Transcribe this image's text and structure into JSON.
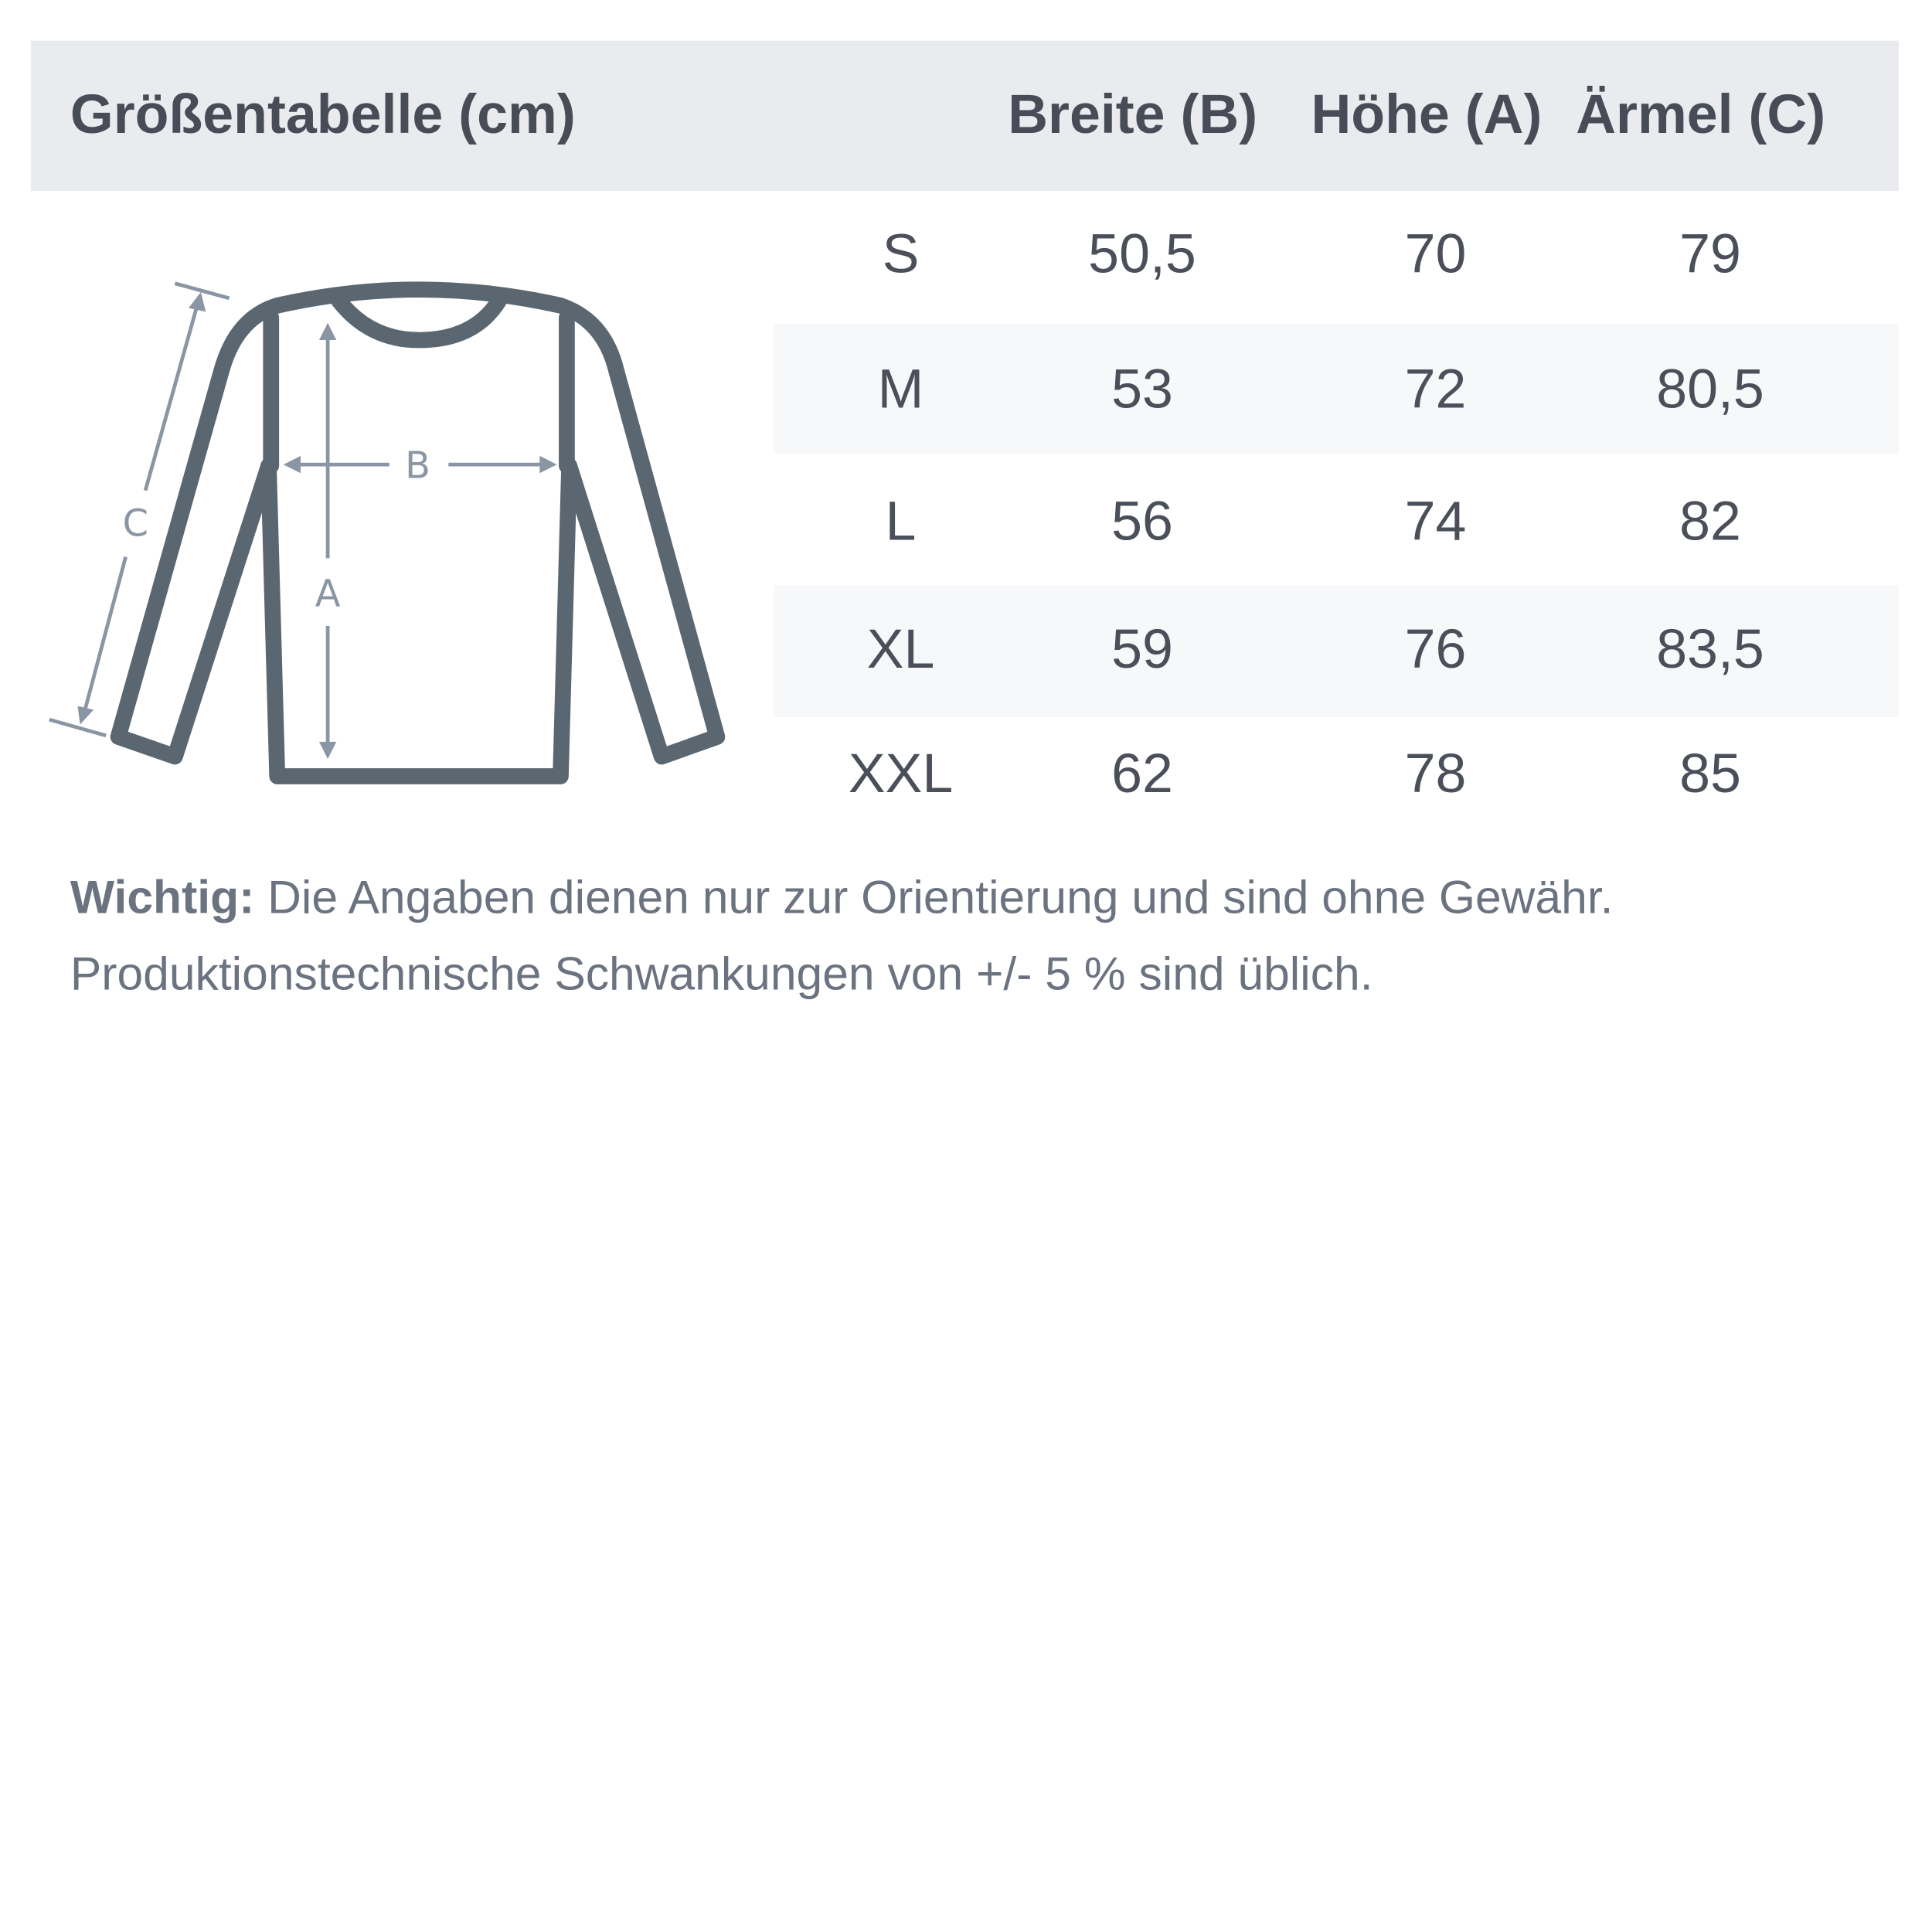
{
  "header": {
    "title": "Größentabelle (cm)",
    "columns": [
      "Breite (B)",
      "Höhe (A)",
      "Ärmel (C)"
    ]
  },
  "rows": [
    {
      "size": "S",
      "breite": "50,5",
      "hoehe": "70",
      "aermel": "79"
    },
    {
      "size": "M",
      "breite": "53",
      "hoehe": "72",
      "aermel": "80,5"
    },
    {
      "size": "L",
      "breite": "56",
      "hoehe": "74",
      "aermel": "82"
    },
    {
      "size": "XL",
      "breite": "59",
      "hoehe": "76",
      "aermel": "83,5"
    },
    {
      "size": "XXL",
      "breite": "62",
      "hoehe": "78",
      "aermel": "85"
    }
  ],
  "diagram": {
    "label_a": "A",
    "label_b": "B",
    "label_c": "C"
  },
  "note": {
    "bold": "Wichtig:",
    "line1": "Die Angaben dienen nur zur Orientierung und sind ohne Gewähr.",
    "line2": "Produktionstechnische Schwankungen von +/- 5 % sind üblich."
  },
  "colors": {
    "header_bg": "#e9ebef",
    "outline": "#5a6770",
    "arrows": "#8a96a3",
    "text": "#4a4f59"
  }
}
